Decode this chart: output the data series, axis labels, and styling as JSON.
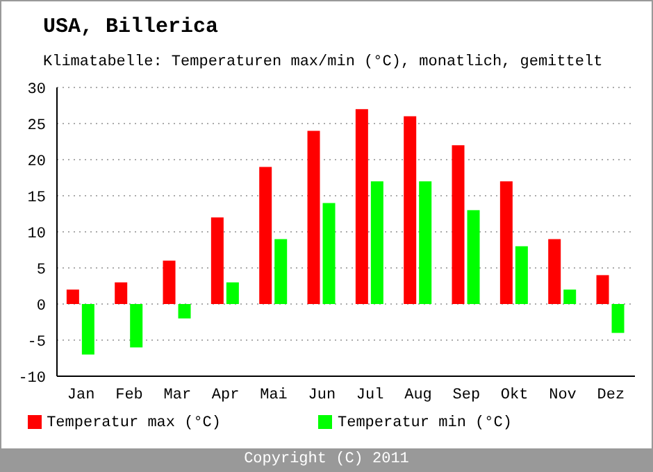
{
  "chart_data": {
    "type": "bar",
    "title": "USA, Billerica",
    "subtitle": "Klimatabelle: Temperaturen max/min (°C), monatlich, gemittelt",
    "categories": [
      "Jan",
      "Feb",
      "Mar",
      "Apr",
      "Mai",
      "Jun",
      "Jul",
      "Aug",
      "Sep",
      "Okt",
      "Nov",
      "Dez"
    ],
    "series": [
      {
        "name": "Temperatur max (°C)",
        "color": "#ff0000",
        "values": [
          2,
          3,
          6,
          12,
          19,
          24,
          27,
          26,
          22,
          17,
          9,
          4
        ]
      },
      {
        "name": "Temperatur min (°C)",
        "color": "#00ff00",
        "values": [
          -7,
          -6,
          -2,
          3,
          9,
          14,
          17,
          17,
          13,
          8,
          2,
          -4
        ]
      }
    ],
    "ylim": [
      -10,
      30
    ],
    "yticks": [
      -10,
      -5,
      0,
      5,
      10,
      15,
      20,
      25,
      30
    ],
    "grid": "y",
    "legend": "bottom",
    "annotations": [
      "Copyright (C) 2011"
    ]
  }
}
